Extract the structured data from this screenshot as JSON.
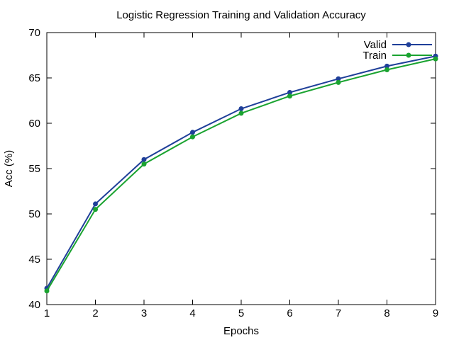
{
  "chart_data": {
    "type": "line",
    "title": "Logistic Regression Training and Validation Accuracy",
    "xlabel": "Epochs",
    "ylabel": "Acc (%)",
    "xlim": [
      1,
      9
    ],
    "ylim": [
      40,
      70
    ],
    "x": [
      1,
      2,
      3,
      4,
      5,
      6,
      7,
      8,
      9
    ],
    "xticks": [
      1,
      2,
      3,
      4,
      5,
      6,
      7,
      8,
      9
    ],
    "yticks": [
      40,
      45,
      50,
      55,
      60,
      65,
      70
    ],
    "grid": false,
    "legend_position": "top-right",
    "series": [
      {
        "name": "Valid",
        "color": "#1f3f99",
        "values": [
          41.8,
          51.1,
          56.0,
          59.0,
          61.6,
          63.4,
          64.9,
          66.3,
          67.4
        ]
      },
      {
        "name": "Train",
        "color": "#1aa330",
        "values": [
          41.5,
          50.5,
          55.5,
          58.5,
          61.1,
          63.0,
          64.5,
          65.9,
          67.1
        ]
      }
    ]
  }
}
